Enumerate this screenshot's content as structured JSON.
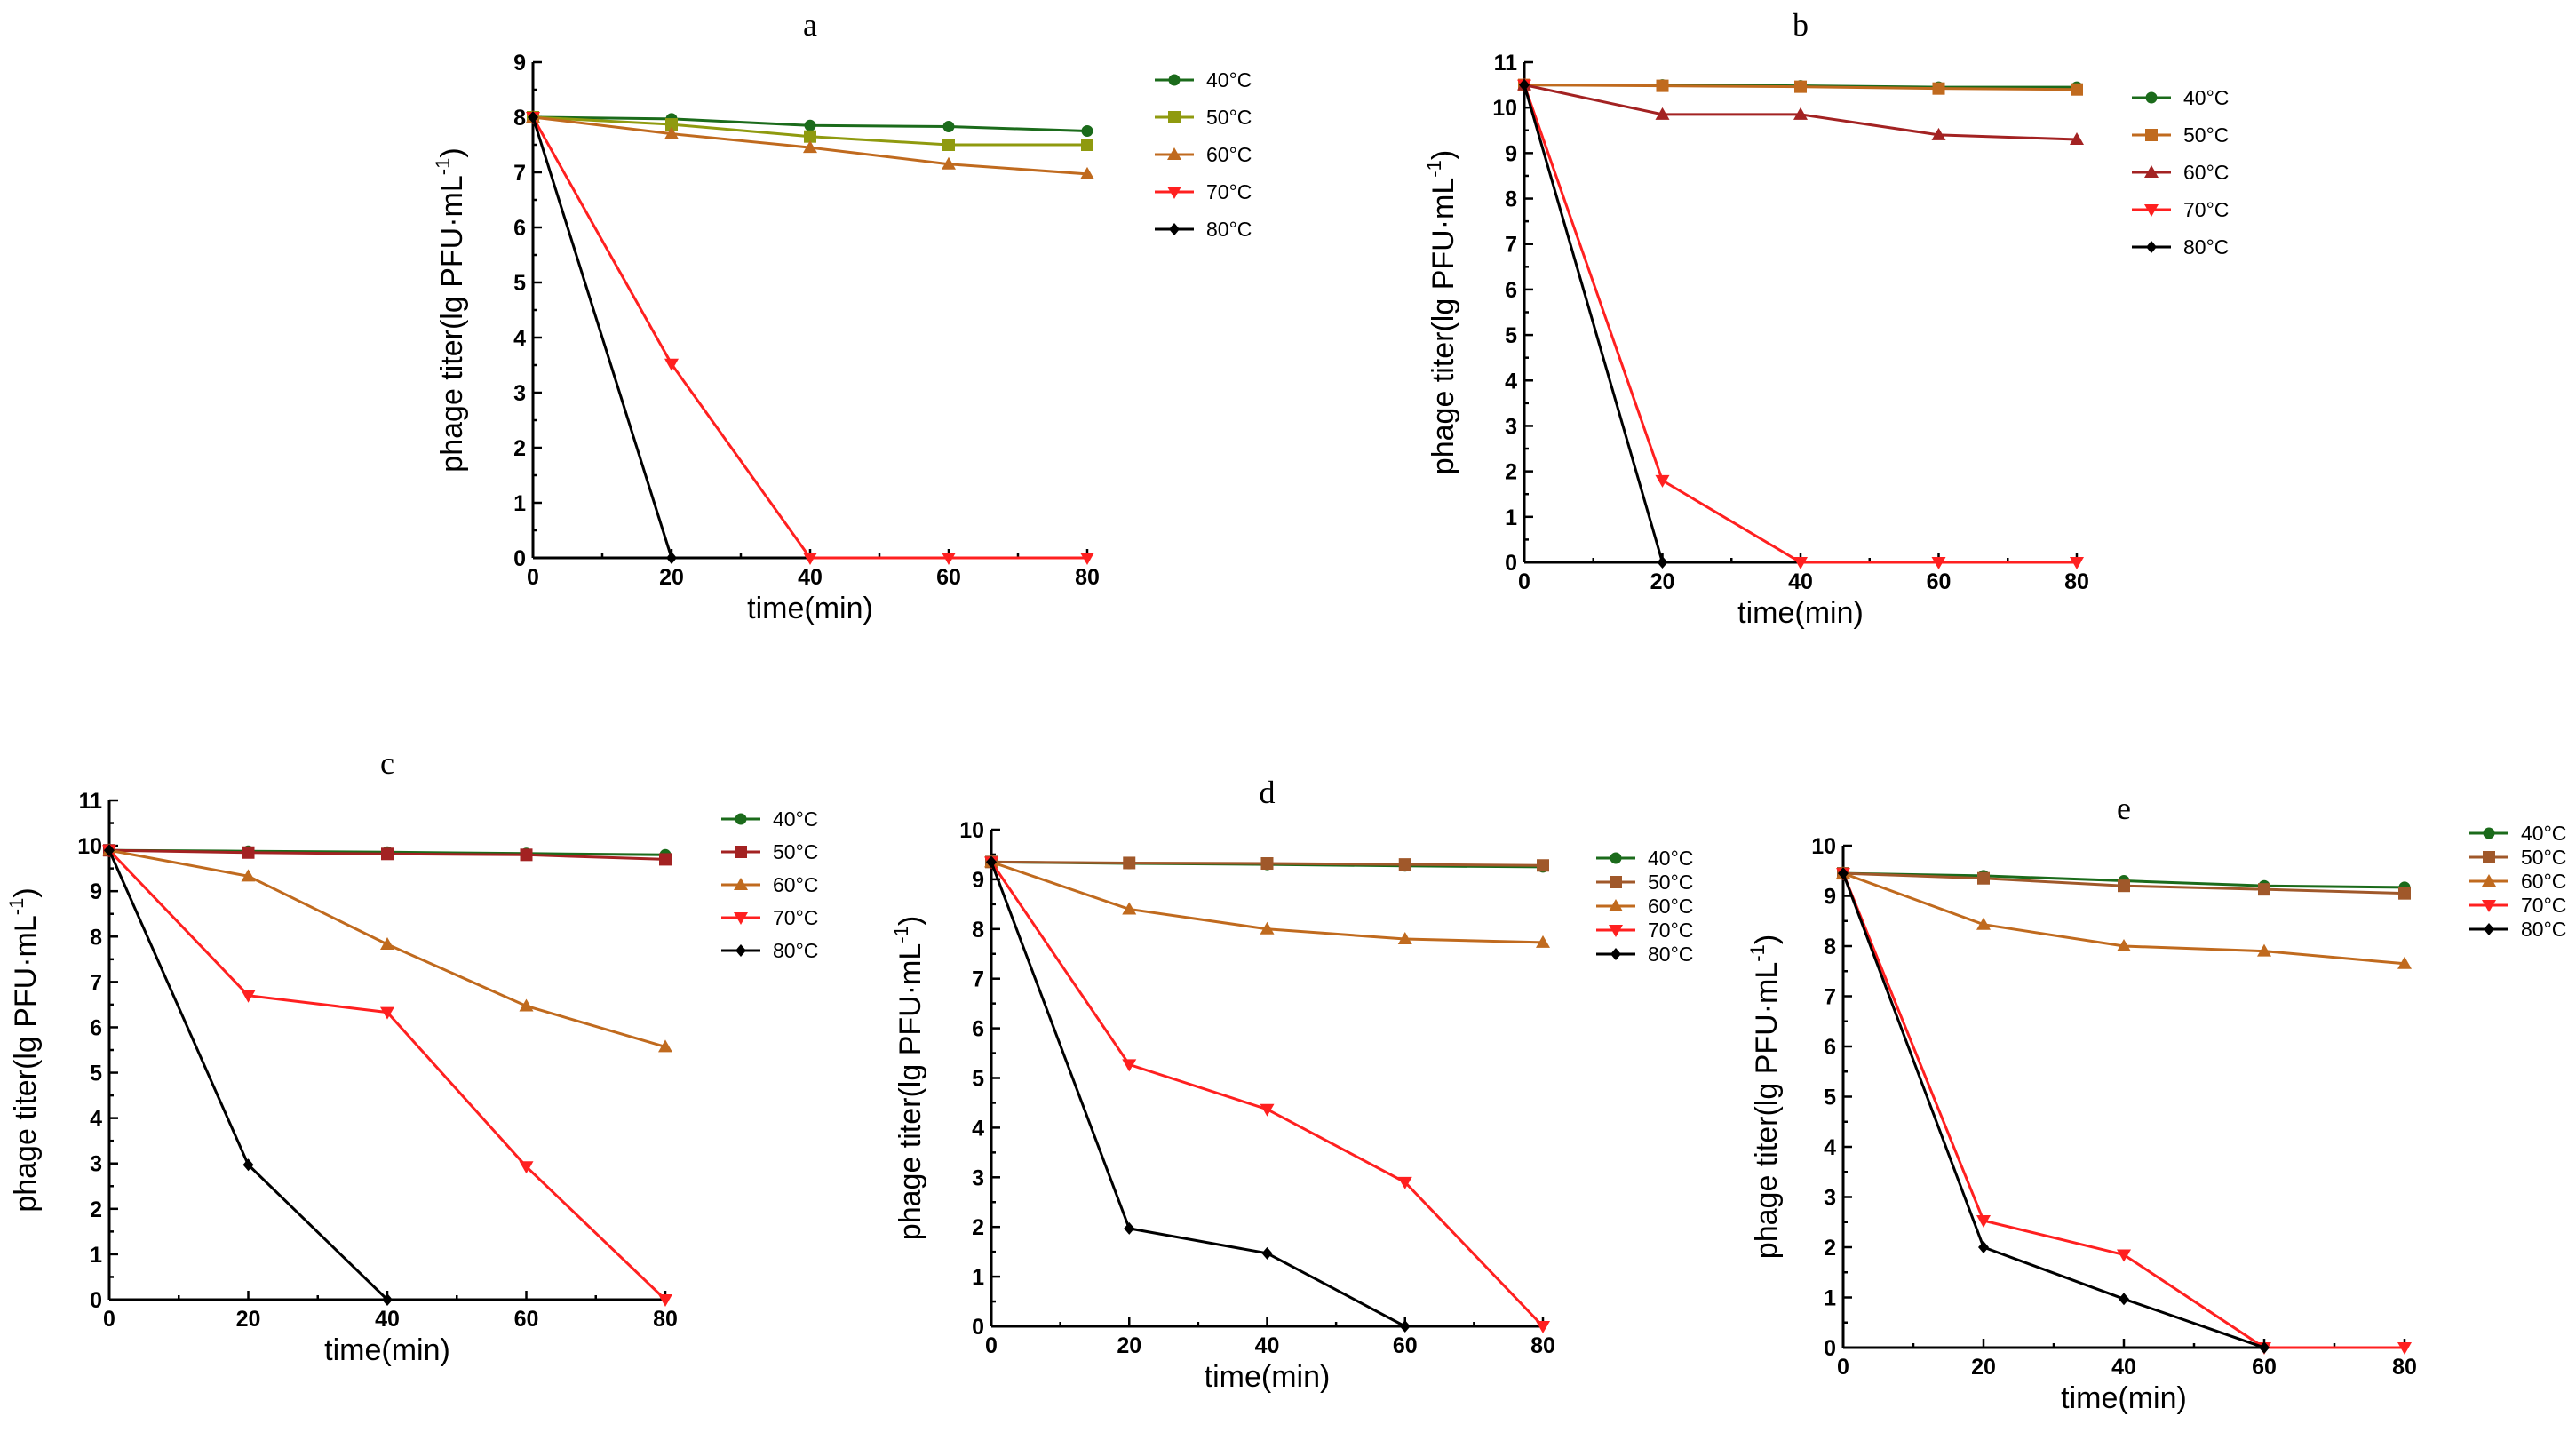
{
  "chart_data": [
    {
      "id": "a",
      "type": "line",
      "title": "a",
      "xlabel": "time(min)",
      "ylabel": "phage titer(lg PFU·mL",
      "ylabel_sup": "-1",
      "ylabel_close": ")",
      "x": [
        0,
        20,
        40,
        60,
        80
      ],
      "xticks": [
        "0",
        "20",
        "40",
        "60",
        "80"
      ],
      "yticks": [
        "0",
        "1",
        "2",
        "3",
        "4",
        "5",
        "6",
        "7",
        "8",
        "9"
      ],
      "xlim": [
        0,
        80
      ],
      "ylim": [
        0,
        9
      ],
      "series": [
        {
          "name": "40°C",
          "color": "#1b6b1b",
          "marker": "circle",
          "values": [
            8.0,
            7.97,
            7.85,
            7.83,
            7.75
          ]
        },
        {
          "name": "50°C",
          "color": "#8f9a0f",
          "marker": "square",
          "values": [
            8.0,
            7.87,
            7.65,
            7.5,
            7.5
          ]
        },
        {
          "name": "60°C",
          "color": "#c06a1e",
          "marker": "triangle-up",
          "values": [
            8.0,
            7.7,
            7.45,
            7.15,
            6.97
          ]
        },
        {
          "name": "70°C",
          "color": "#ff2020",
          "marker": "triangle-down",
          "values": [
            8.0,
            3.52,
            0.0,
            0.0,
            0.0
          ]
        },
        {
          "name": "80°C",
          "color": "#000000",
          "marker": "diamond",
          "values": [
            8.0,
            0.0,
            null,
            null,
            null
          ]
        }
      ]
    },
    {
      "id": "b",
      "type": "line",
      "title": "b",
      "xlabel": "time(min)",
      "ylabel": "phage titer(lg PFU·mL",
      "ylabel_sup": "-1",
      "ylabel_close": ")",
      "x": [
        0,
        20,
        40,
        60,
        80
      ],
      "xticks": [
        "0",
        "20",
        "40",
        "60",
        "80"
      ],
      "yticks": [
        "0",
        "1",
        "2",
        "3",
        "4",
        "5",
        "6",
        "7",
        "8",
        "9",
        "10",
        "11"
      ],
      "xlim": [
        0,
        80
      ],
      "ylim": [
        0,
        11
      ],
      "series": [
        {
          "name": "40°C",
          "color": "#1b6b1b",
          "marker": "circle",
          "values": [
            10.5,
            10.5,
            10.48,
            10.45,
            10.45
          ]
        },
        {
          "name": "50°C",
          "color": "#c06a1e",
          "marker": "square",
          "values": [
            10.5,
            10.48,
            10.46,
            10.42,
            10.4
          ]
        },
        {
          "name": "60°C",
          "color": "#a32222",
          "marker": "triangle-up",
          "values": [
            10.5,
            9.85,
            9.85,
            9.4,
            9.3
          ]
        },
        {
          "name": "70°C",
          "color": "#ff2020",
          "marker": "triangle-down",
          "values": [
            10.5,
            1.8,
            0.0,
            0.0,
            0.0
          ]
        },
        {
          "name": "80°C",
          "color": "#000000",
          "marker": "diamond",
          "values": [
            10.5,
            0.0,
            null,
            null,
            null
          ]
        }
      ]
    },
    {
      "id": "c",
      "type": "line",
      "title": "c",
      "xlabel": "time(min)",
      "ylabel": "phage titer(lg PFU·mL",
      "ylabel_sup": "-1",
      "ylabel_close": ")",
      "x": [
        0,
        20,
        40,
        60,
        80
      ],
      "xticks": [
        "0",
        "20",
        "40",
        "60",
        "80"
      ],
      "yticks": [
        "0",
        "1",
        "2",
        "3",
        "4",
        "5",
        "6",
        "7",
        "8",
        "9",
        "10",
        "11"
      ],
      "xlim": [
        0,
        80
      ],
      "ylim": [
        0,
        11
      ],
      "series": [
        {
          "name": "40°C",
          "color": "#1b6b1b",
          "marker": "circle",
          "values": [
            9.9,
            9.88,
            9.86,
            9.83,
            9.8
          ]
        },
        {
          "name": "50°C",
          "color": "#a32222",
          "marker": "square",
          "values": [
            9.9,
            9.85,
            9.82,
            9.8,
            9.7
          ]
        },
        {
          "name": "60°C",
          "color": "#c06a1e",
          "marker": "triangle-up",
          "values": [
            9.9,
            9.33,
            7.83,
            6.47,
            5.57
          ]
        },
        {
          "name": "70°C",
          "color": "#ff2020",
          "marker": "triangle-down",
          "values": [
            9.9,
            6.7,
            6.33,
            2.93,
            0.0
          ]
        },
        {
          "name": "80°C",
          "color": "#000000",
          "marker": "diamond",
          "values": [
            9.9,
            2.97,
            0.0,
            null,
            null
          ]
        }
      ]
    },
    {
      "id": "d",
      "type": "line",
      "title": "d",
      "xlabel": "time(min)",
      "ylabel": "phage titer(lg PFU·mL",
      "ylabel_sup": "-1",
      "ylabel_close": ")",
      "x": [
        0,
        20,
        40,
        60,
        80
      ],
      "xticks": [
        "0",
        "20",
        "40",
        "60",
        "80"
      ],
      "yticks": [
        "0",
        "1",
        "2",
        "3",
        "4",
        "5",
        "6",
        "7",
        "8",
        "9",
        "10"
      ],
      "xlim": [
        0,
        80
      ],
      "ylim": [
        0,
        10
      ],
      "series": [
        {
          "name": "40°C",
          "color": "#1b6b1b",
          "marker": "circle",
          "values": [
            9.35,
            9.32,
            9.3,
            9.27,
            9.25
          ]
        },
        {
          "name": "50°C",
          "color": "#a0582a",
          "marker": "square",
          "values": [
            9.35,
            9.33,
            9.32,
            9.3,
            9.28
          ]
        },
        {
          "name": "60°C",
          "color": "#c06a1e",
          "marker": "triangle-up",
          "values": [
            9.35,
            8.4,
            8.0,
            7.8,
            7.73
          ]
        },
        {
          "name": "70°C",
          "color": "#ff2020",
          "marker": "triangle-down",
          "values": [
            9.35,
            5.27,
            4.37,
            2.9,
            0.0
          ]
        },
        {
          "name": "80°C",
          "color": "#000000",
          "marker": "diamond",
          "values": [
            9.35,
            1.97,
            1.47,
            0.0,
            null
          ]
        }
      ]
    },
    {
      "id": "e",
      "type": "line",
      "title": "e",
      "xlabel": "time(min)",
      "ylabel": "phage titer(lg PFU·mL",
      "ylabel_sup": "-1",
      "ylabel_close": ")",
      "x": [
        0,
        20,
        40,
        60,
        80
      ],
      "xticks": [
        "0",
        "20",
        "40",
        "60",
        "80"
      ],
      "yticks": [
        "0",
        "1",
        "2",
        "3",
        "4",
        "5",
        "6",
        "7",
        "8",
        "9",
        "10"
      ],
      "xlim": [
        0,
        80
      ],
      "ylim": [
        0,
        10
      ],
      "series": [
        {
          "name": "40°C",
          "color": "#1b6b1b",
          "marker": "circle",
          "values": [
            9.45,
            9.4,
            9.3,
            9.2,
            9.17
          ]
        },
        {
          "name": "50°C",
          "color": "#a0582a",
          "marker": "square",
          "values": [
            9.45,
            9.35,
            9.2,
            9.13,
            9.05
          ]
        },
        {
          "name": "60°C",
          "color": "#c06a1e",
          "marker": "triangle-up",
          "values": [
            9.45,
            8.43,
            8.0,
            7.9,
            7.65
          ]
        },
        {
          "name": "70°C",
          "color": "#ff2020",
          "marker": "triangle-down",
          "values": [
            9.45,
            2.53,
            1.85,
            0.0,
            0.0
          ]
        },
        {
          "name": "80°C",
          "color": "#000000",
          "marker": "diamond",
          "values": [
            9.45,
            2.0,
            0.97,
            0.0,
            null
          ]
        }
      ]
    }
  ]
}
